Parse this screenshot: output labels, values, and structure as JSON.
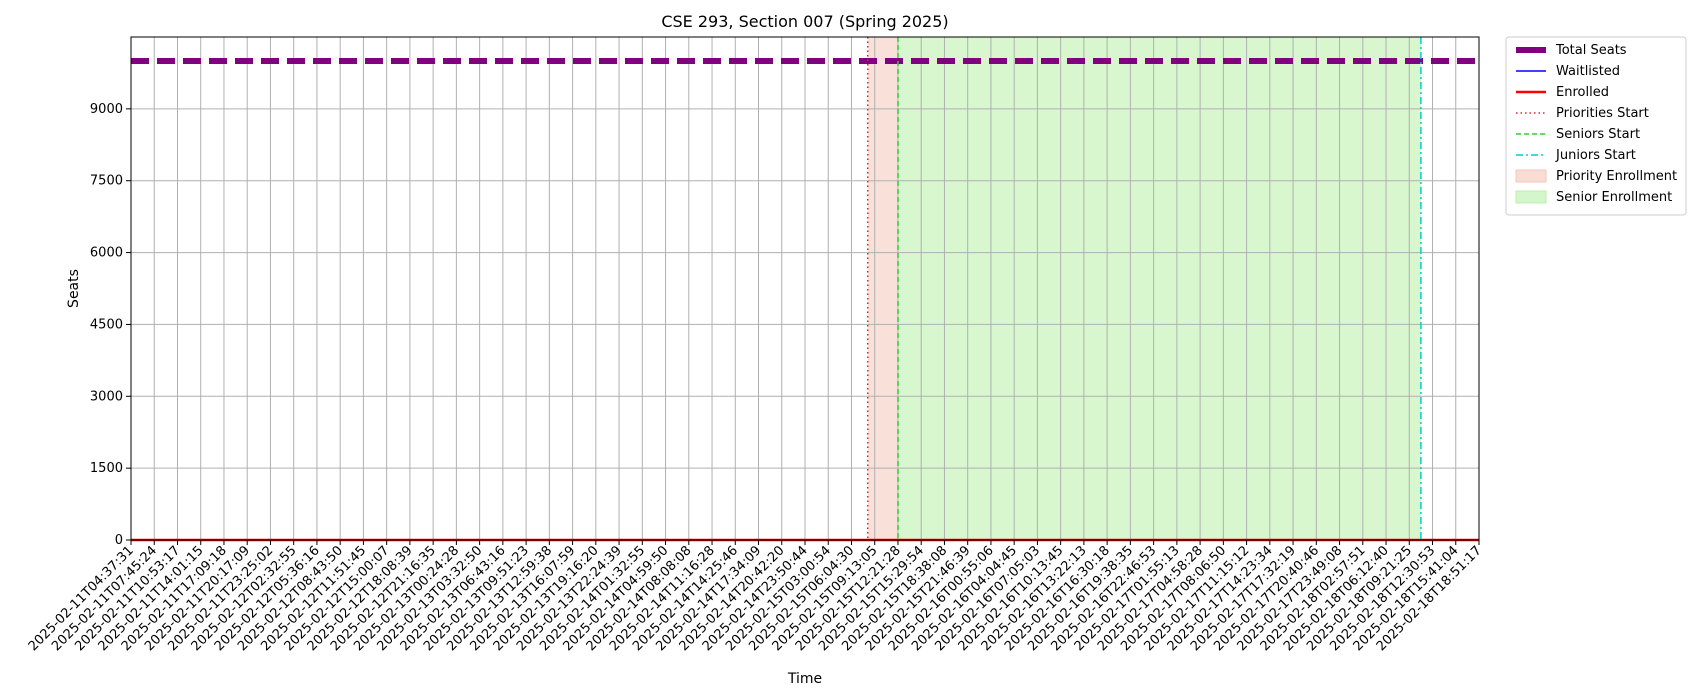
{
  "chart_data": {
    "type": "line",
    "title": "CSE 293, Section 007 (Spring 2025)",
    "xlabel": "Time",
    "ylabel": "Seats",
    "ylim": [
      0,
      10500
    ],
    "yticks": [
      0,
      1500,
      3000,
      4500,
      6000,
      7500,
      9000
    ],
    "grid": true,
    "legend_position": "outside-top-right",
    "x": [
      "2025-02-11T04:37:31",
      "2025-02-11T07:45:24",
      "2025-02-11T10:53:17",
      "2025-02-11T14:01:15",
      "2025-02-11T17:09:18",
      "2025-02-11T20:17:09",
      "2025-02-11T23:25:02",
      "2025-02-12T02:32:55",
      "2025-02-12T05:36:16",
      "2025-02-12T08:43:50",
      "2025-02-12T11:51:45",
      "2025-02-12T15:00:07",
      "2025-02-12T18:08:39",
      "2025-02-12T21:16:35",
      "2025-02-13T00:24:28",
      "2025-02-13T03:32:50",
      "2025-02-13T06:43:16",
      "2025-02-13T09:51:23",
      "2025-02-13T12:59:38",
      "2025-02-13T16:07:59",
      "2025-02-13T19:16:20",
      "2025-02-13T22:24:39",
      "2025-02-14T01:32:55",
      "2025-02-14T04:59:50",
      "2025-02-14T08:08:08",
      "2025-02-14T11:16:28",
      "2025-02-14T14:25:46",
      "2025-02-14T17:34:09",
      "2025-02-14T20:42:20",
      "2025-02-14T23:50:44",
      "2025-02-15T03:00:54",
      "2025-02-15T06:04:30",
      "2025-02-15T09:13:05",
      "2025-02-15T12:21:28",
      "2025-02-15T15:29:54",
      "2025-02-15T18:38:08",
      "2025-02-15T21:46:39",
      "2025-02-16T00:55:06",
      "2025-02-16T04:04:45",
      "2025-02-16T07:05:03",
      "2025-02-16T10:13:45",
      "2025-02-16T13:22:13",
      "2025-02-16T16:30:18",
      "2025-02-16T19:38:35",
      "2025-02-16T22:46:53",
      "2025-02-17T01:55:13",
      "2025-02-17T04:58:28",
      "2025-02-17T08:06:50",
      "2025-02-17T11:15:12",
      "2025-02-17T14:23:34",
      "2025-02-17T17:32:19",
      "2025-02-17T20:40:46",
      "2025-02-17T23:49:08",
      "2025-02-18T02:57:51",
      "2025-02-18T06:12:40",
      "2025-02-18T09:21:25",
      "2025-02-18T12:30:53",
      "2025-02-18T15:41:04",
      "2025-02-18T18:51:17"
    ],
    "series": [
      {
        "name": "Total Seats",
        "style": "dashed-thick",
        "color": "#800080",
        "constant": 10000
      },
      {
        "name": "Waitlisted",
        "style": "solid",
        "color": "#0000ff",
        "constant": 0
      },
      {
        "name": "Enrolled",
        "style": "solid-thick",
        "color": "#ff0000",
        "constant": 0
      }
    ],
    "vlines": [
      {
        "name": "Priorities Start",
        "x_index": 31.7,
        "style": "dotted",
        "color": "#d62728"
      },
      {
        "name": "Seniors Start",
        "x_index": 33.0,
        "style": "dashed",
        "color": "#32cd32"
      },
      {
        "name": "Juniors Start",
        "x_index": 55.5,
        "style": "dashdot",
        "color": "#00ced1"
      }
    ],
    "spans": [
      {
        "name": "Priority Enrollment",
        "x_start_index": 31.7,
        "x_end_index": 33.0,
        "color": "#f4c7b8"
      },
      {
        "name": "Senior Enrollment",
        "x_start_index": 33.0,
        "x_end_index": 55.5,
        "color": "#b8f0a8"
      }
    ],
    "legend": [
      "Total Seats",
      "Waitlisted",
      "Enrolled",
      "Priorities Start",
      "Seniors Start",
      "Juniors Start",
      "Priority Enrollment",
      "Senior Enrollment"
    ]
  }
}
